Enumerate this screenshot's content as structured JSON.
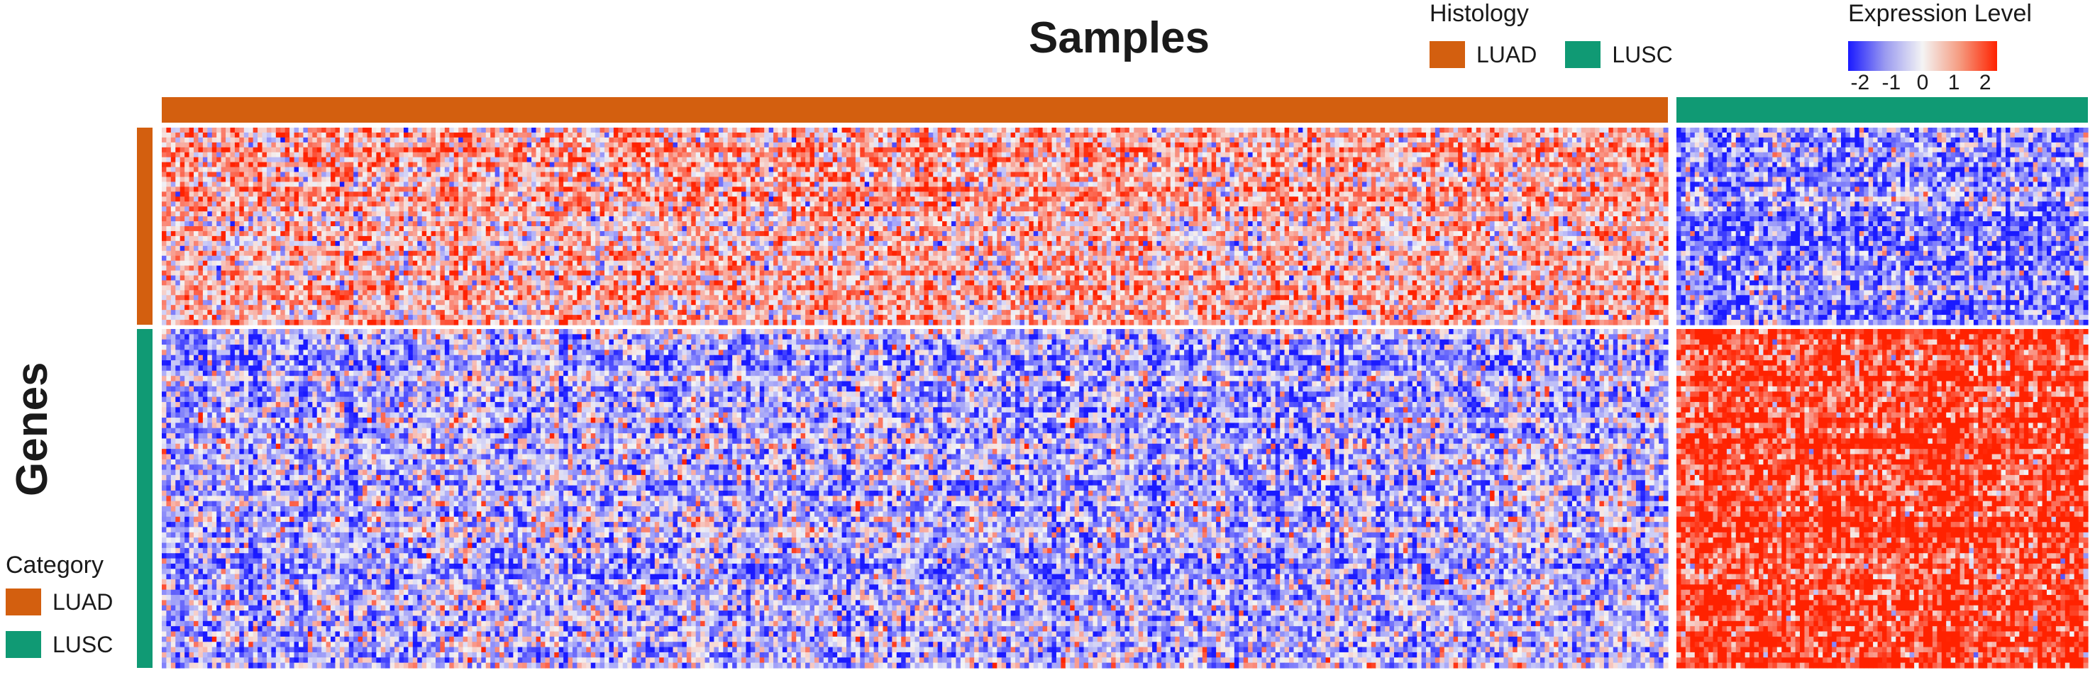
{
  "title": "Samples",
  "ylabel": "Genes",
  "legends": {
    "histology": {
      "title": "Histology",
      "items": [
        {
          "label": "LUAD",
          "color": "#d35f0f"
        },
        {
          "label": "LUSC",
          "color": "#109a74"
        }
      ]
    },
    "category": {
      "title": "Category",
      "items": [
        {
          "label": "LUAD",
          "color": "#d35f0f"
        },
        {
          "label": "LUSC",
          "color": "#109a74"
        }
      ]
    },
    "expression": {
      "title": "Expression Level",
      "ticks": [
        "-2",
        "-1",
        "0",
        "1",
        "2"
      ],
      "range": [
        -2,
        2
      ],
      "colors": {
        "low": "#1a1aff",
        "mid": "#f4f4f4",
        "high": "#ff2200"
      }
    }
  },
  "chart_data": {
    "type": "heatmap",
    "title": "Samples",
    "xlabel": "",
    "ylabel": "Genes",
    "value_range": [
      -2,
      2
    ],
    "column_groups": [
      {
        "label": "LUAD",
        "count": 330
      },
      {
        "label": "LUSC",
        "count": 90
      }
    ],
    "row_groups": [
      {
        "label": "LUAD",
        "count": 40
      },
      {
        "label": "LUSC",
        "count": 65
      }
    ],
    "block_means": [
      {
        "gene_category": "LUAD",
        "histology": "LUAD",
        "mean": 0.6
      },
      {
        "gene_category": "LUAD",
        "histology": "LUSC",
        "mean": -1.0
      },
      {
        "gene_category": "LUSC",
        "histology": "LUAD",
        "mean": -0.6
      },
      {
        "gene_category": "LUSC",
        "histology": "LUSC",
        "mean": 1.7
      }
    ]
  }
}
